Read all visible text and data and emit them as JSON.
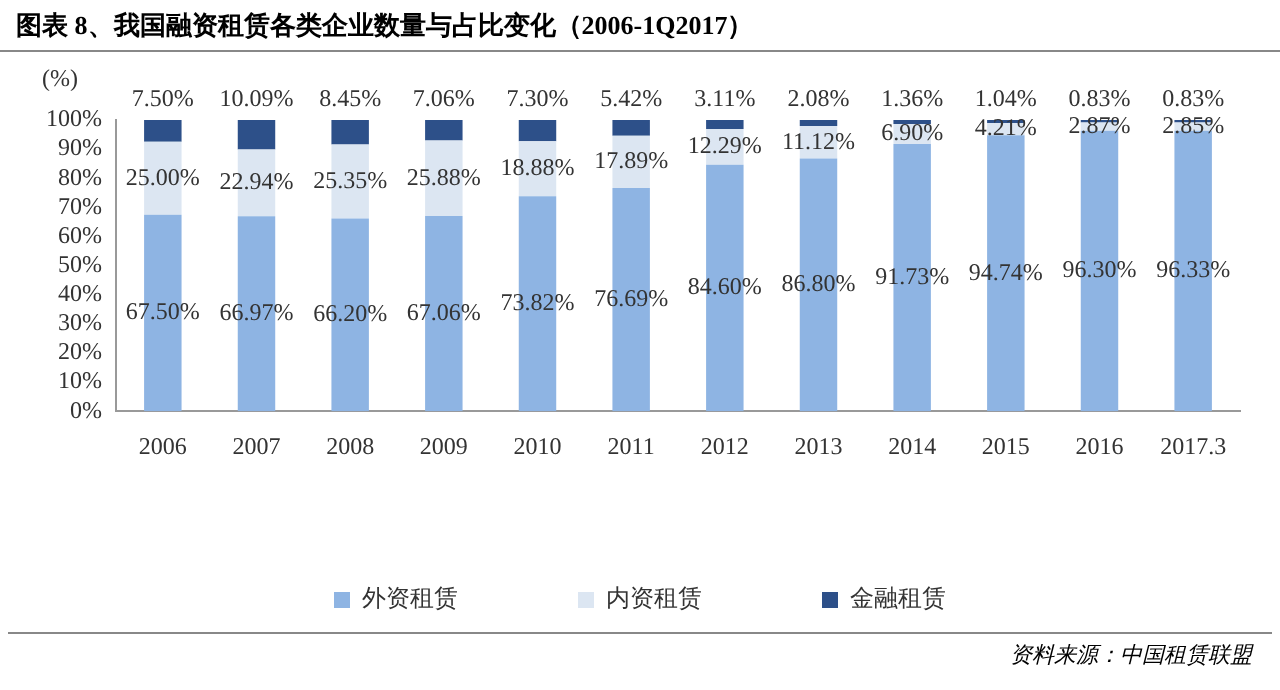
{
  "chart_data": {
    "type": "bar",
    "stacked": true,
    "title": "图表 8、我国融资租赁各类企业数量与占比变化（2006-1Q2017）",
    "ylabel": "(%)",
    "categories": [
      "2006",
      "2007",
      "2008",
      "2009",
      "2010",
      "2011",
      "2012",
      "2013",
      "2014",
      "2015",
      "2016",
      "2017.3"
    ],
    "series": [
      {
        "name": "外资租赁",
        "color": "#8eb4e3",
        "values": [
          67.5,
          66.97,
          66.2,
          67.06,
          73.82,
          76.69,
          84.6,
          86.8,
          91.73,
          94.74,
          96.3,
          96.33
        ],
        "value_labels": [
          "67.50%",
          "66.97%",
          "66.20%",
          "67.06%",
          "73.82%",
          "76.69%",
          "84.60%",
          "86.80%",
          "91.73%",
          "94.74%",
          "96.30%",
          "96.33%"
        ]
      },
      {
        "name": "内资租赁",
        "color": "#dce6f2",
        "values": [
          25.0,
          22.94,
          25.35,
          25.88,
          18.88,
          17.89,
          12.29,
          11.12,
          6.9,
          4.21,
          2.87,
          2.85
        ],
        "value_labels": [
          "25.00%",
          "22.94%",
          "25.35%",
          "25.88%",
          "18.88%",
          "17.89%",
          "12.29%",
          "11.12%",
          "6.90%",
          "4.21%",
          "2.87%",
          "2.85%"
        ]
      },
      {
        "name": "金融租赁",
        "color": "#2d5089",
        "values": [
          7.5,
          10.09,
          8.45,
          7.06,
          7.3,
          5.42,
          3.11,
          2.08,
          1.36,
          1.04,
          0.83,
          0.83
        ],
        "value_labels": [
          "7.50%",
          "10.09%",
          "8.45%",
          "7.06%",
          "7.30%",
          "5.42%",
          "3.11%",
          "2.08%",
          "1.36%",
          "1.04%",
          "0.83%",
          "0.83%"
        ]
      }
    ],
    "ylim": [
      0,
      100
    ],
    "yticks": [
      {
        "value": 0,
        "label": "0%"
      },
      {
        "value": 10,
        "label": "10%"
      },
      {
        "value": 20,
        "label": "20%"
      },
      {
        "value": 30,
        "label": "30%"
      },
      {
        "value": 40,
        "label": "40%"
      },
      {
        "value": 50,
        "label": "50%"
      },
      {
        "value": 60,
        "label": "60%"
      },
      {
        "value": 70,
        "label": "70%"
      },
      {
        "value": 80,
        "label": "80%"
      },
      {
        "value": 90,
        "label": "90%"
      },
      {
        "value": 100,
        "label": "100%"
      }
    ],
    "grid": false,
    "legend": "bottom",
    "annotations": [
      "资料来源：中国租赁联盟"
    ]
  }
}
